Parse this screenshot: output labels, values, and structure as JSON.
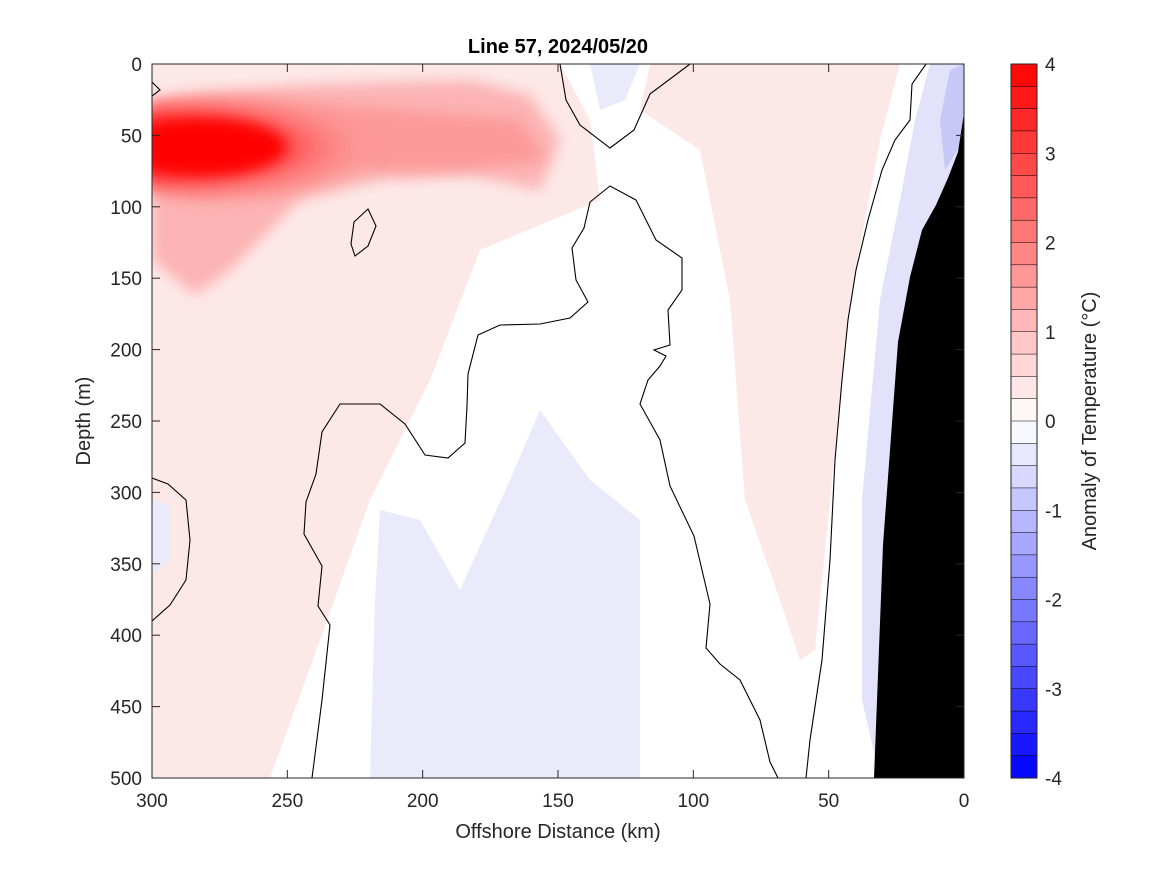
{
  "chart_data": {
    "type": "heatmap",
    "title": "Line 57, 2024/05/20",
    "xlabel": "Offshore Distance (km)",
    "ylabel": "Depth (m)",
    "colorbar_label": "Anomaly of Temperature (°C)",
    "xlim": [
      300,
      0
    ],
    "ylim": [
      0,
      500
    ],
    "x_reversed": true,
    "y_reversed": true,
    "x_ticks": [
      300,
      250,
      200,
      150,
      100,
      50,
      0
    ],
    "y_ticks": [
      0,
      50,
      100,
      150,
      200,
      250,
      300,
      350,
      400,
      450,
      500
    ],
    "colorbar_ticks": [
      4,
      3,
      2,
      1,
      0,
      -1,
      -2,
      -3,
      -4
    ],
    "colorbar_range": [
      -4,
      4
    ],
    "colorbar_step": 0.25,
    "color_max": "#ff0000",
    "color_zero": "#ffffff",
    "color_min": "#0000ff",
    "land_color": "#000000",
    "grid": false,
    "anomaly_features": [
      {
        "type": "warm_core",
        "x": 275,
        "depth": 58,
        "max_anomaly": 4
      },
      {
        "type": "warm_tongue",
        "x_range": [
          300,
          160
        ],
        "depth_range": [
          20,
          110
        ],
        "anomaly": 1.5
      },
      {
        "type": "warm_band",
        "x_range": [
          105,
          65
        ],
        "depth_range": [
          0,
          410
        ],
        "anomaly": 0.4
      },
      {
        "type": "cool_region",
        "x_range": [
          200,
          120
        ],
        "depth_range": [
          250,
          500
        ],
        "anomaly": -0.3
      },
      {
        "type": "cool_band",
        "x_range": [
          45,
          0
        ],
        "depth_range": [
          0,
          480
        ],
        "anomaly": -0.6
      }
    ],
    "contour_levels": [
      0
    ]
  }
}
